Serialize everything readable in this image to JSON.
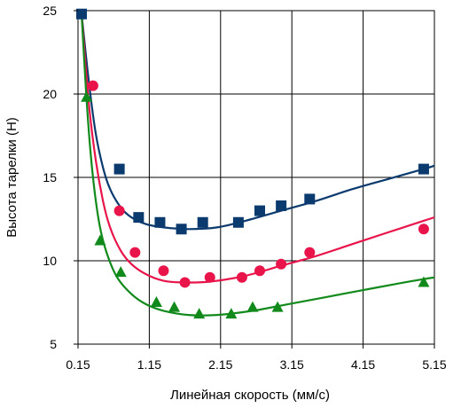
{
  "chart_data": {
    "type": "scatter",
    "title": "",
    "xlabel": "Линейная скорость (мм/с)",
    "ylabel": "Высота тарелки (Н)",
    "xlim": [
      0.15,
      5.15
    ],
    "ylim": [
      5,
      25
    ],
    "x_ticks": [
      0.15,
      1.15,
      2.15,
      3.15,
      4.15,
      5.15
    ],
    "x_tick_labels": [
      "0.15",
      "1.15",
      "2.15",
      "3.15",
      "4.15",
      "5.15"
    ],
    "y_ticks": [
      5,
      10,
      15,
      20,
      25
    ],
    "y_tick_labels": [
      "5",
      "10",
      "15",
      "20",
      "25"
    ],
    "grid": true,
    "legend": "none",
    "series": [
      {
        "marker": "square",
        "color": "#0b3a6e",
        "points": [
          [
            0.2,
            24.8
          ],
          [
            0.73,
            15.5
          ],
          [
            1.0,
            12.6
          ],
          [
            1.3,
            12.3
          ],
          [
            1.6,
            11.9
          ],
          [
            1.9,
            12.3
          ],
          [
            2.4,
            12.3
          ],
          [
            2.7,
            13.0
          ],
          [
            3.0,
            13.3
          ],
          [
            3.4,
            13.7
          ],
          [
            5.0,
            15.5
          ]
        ],
        "curve": [
          [
            0.2,
            24.8
          ],
          [
            0.3,
            20.8
          ],
          [
            0.4,
            17.6
          ],
          [
            0.5,
            15.6
          ],
          [
            0.6,
            14.3
          ],
          [
            0.75,
            13.2
          ],
          [
            0.9,
            12.6
          ],
          [
            1.1,
            12.2
          ],
          [
            1.35,
            12.0
          ],
          [
            1.7,
            11.9
          ],
          [
            2.1,
            12.0
          ],
          [
            2.5,
            12.4
          ],
          [
            3.0,
            13.0
          ],
          [
            3.5,
            13.6
          ],
          [
            4.0,
            14.3
          ],
          [
            4.5,
            14.9
          ],
          [
            5.0,
            15.5
          ],
          [
            5.15,
            15.7
          ]
        ]
      },
      {
        "marker": "circle",
        "color": "#e8144a",
        "points": [
          [
            0.36,
            20.5
          ],
          [
            0.73,
            13.0
          ],
          [
            0.95,
            10.5
          ],
          [
            1.35,
            9.4
          ],
          [
            1.65,
            8.7
          ],
          [
            2.0,
            9.0
          ],
          [
            2.45,
            9.0
          ],
          [
            2.7,
            9.4
          ],
          [
            3.0,
            9.8
          ],
          [
            3.4,
            10.5
          ],
          [
            5.0,
            11.9
          ]
        ],
        "curve": [
          [
            0.2,
            24.8
          ],
          [
            0.3,
            19.5
          ],
          [
            0.4,
            16.0
          ],
          [
            0.5,
            13.6
          ],
          [
            0.6,
            12.0
          ],
          [
            0.75,
            10.6
          ],
          [
            0.9,
            9.8
          ],
          [
            1.1,
            9.2
          ],
          [
            1.35,
            8.8
          ],
          [
            1.6,
            8.7
          ],
          [
            2.0,
            8.75
          ],
          [
            2.5,
            9.1
          ],
          [
            3.0,
            9.7
          ],
          [
            3.5,
            10.3
          ],
          [
            4.0,
            11.0
          ],
          [
            4.5,
            11.7
          ],
          [
            5.0,
            12.4
          ],
          [
            5.15,
            12.6
          ]
        ]
      },
      {
        "marker": "triangle",
        "color": "#118a1b",
        "points": [
          [
            0.27,
            19.8
          ],
          [
            0.46,
            11.2
          ],
          [
            0.75,
            9.3
          ],
          [
            1.25,
            7.5
          ],
          [
            1.5,
            7.2
          ],
          [
            1.85,
            6.8
          ],
          [
            2.3,
            6.8
          ],
          [
            2.6,
            7.2
          ],
          [
            2.95,
            7.2
          ],
          [
            5.0,
            8.7
          ]
        ],
        "curve": [
          [
            0.2,
            24.8
          ],
          [
            0.28,
            19.0
          ],
          [
            0.36,
            15.0
          ],
          [
            0.45,
            12.2
          ],
          [
            0.55,
            10.5
          ],
          [
            0.7,
            9.0
          ],
          [
            0.9,
            8.0
          ],
          [
            1.1,
            7.4
          ],
          [
            1.35,
            7.0
          ],
          [
            1.7,
            6.75
          ],
          [
            2.1,
            6.75
          ],
          [
            2.6,
            7.0
          ],
          [
            3.1,
            7.4
          ],
          [
            3.6,
            7.8
          ],
          [
            4.1,
            8.2
          ],
          [
            4.6,
            8.6
          ],
          [
            5.0,
            8.9
          ],
          [
            5.15,
            9.0
          ]
        ]
      }
    ]
  }
}
